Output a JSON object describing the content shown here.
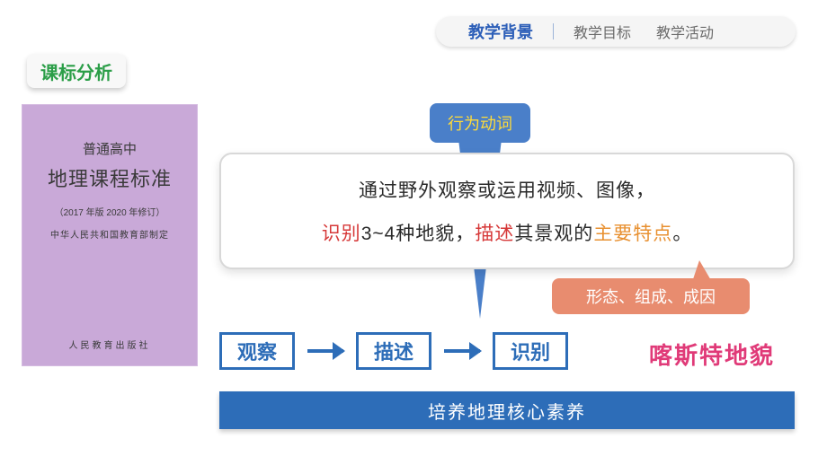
{
  "nav": {
    "items": [
      "教学背景",
      "教学目标",
      "教学活动"
    ],
    "active_index": 0
  },
  "section_tag": "课标分析",
  "book": {
    "line1": "普通高中",
    "line2": "地理课程标准",
    "line3": "（2017 年版 2020 年修订）",
    "line4": "中华人民共和国教育部制定",
    "publisher": "人民教育出版社"
  },
  "callout_verb": "行为动词",
  "content": {
    "line1": "通过野外观察或运用视频、图像，",
    "line2_parts": {
      "p1": "识别",
      "p2": "3~4种地貌，",
      "p3": "描述",
      "p4": "其景观的",
      "p5": "主要特点",
      "p6": "。"
    }
  },
  "callout_detail": "形态、组成、成因",
  "flow": {
    "steps": [
      "观察",
      "描述",
      "识别"
    ]
  },
  "topic": "喀斯特地貌",
  "banner": "培养地理核心素养",
  "colors": {
    "nav_active": "#2d5fb8",
    "nav_inactive": "#6b6b6b",
    "green": "#2b9e48",
    "book_bg": "#c9a9d8",
    "callout_blue": "#4a7fc9",
    "callout_yellow_text": "#ffdb3a",
    "red": "#d63838",
    "orange": "#e89030",
    "salmon": "#e88c6f",
    "primary_blue": "#2d6db8",
    "pink": "#e03a78"
  }
}
